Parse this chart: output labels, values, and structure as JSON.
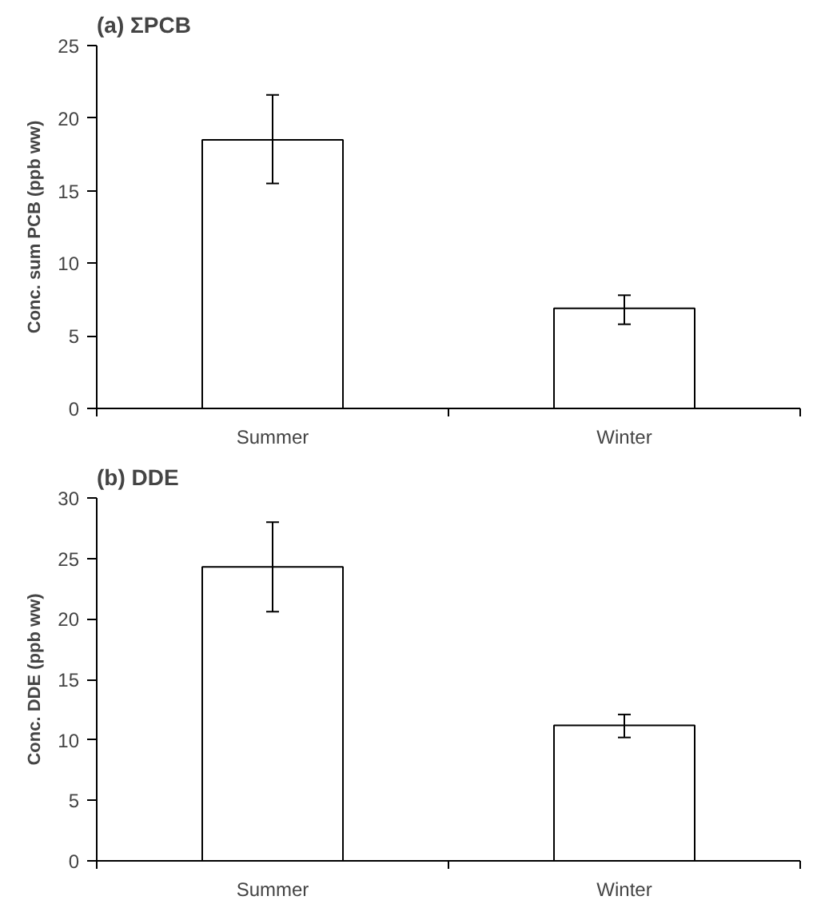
{
  "chart_data": [
    {
      "type": "bar",
      "title": "(a) ΣPCB",
      "ylabel": "Conc. sum PCB (ppb ww)",
      "categories": [
        "Summer",
        "Winter"
      ],
      "values": [
        18.5,
        6.9
      ],
      "errors": [
        [
          15.5,
          21.6
        ],
        [
          5.8,
          7.8
        ]
      ],
      "color": "#ffffff",
      "ylim": [
        0,
        25
      ],
      "yticks": [
        0,
        5,
        10,
        15,
        20,
        25
      ]
    },
    {
      "type": "bar",
      "title": "(b) DDE",
      "ylabel": "Conc. DDE (ppb ww)",
      "categories": [
        "Summer",
        "Winter"
      ],
      "values": [
        24.3,
        11.2
      ],
      "errors": [
        [
          20.6,
          28.0
        ],
        [
          10.2,
          12.1
        ]
      ],
      "color": "#ffffff",
      "ylim": [
        0,
        30
      ],
      "yticks": [
        0,
        5,
        10,
        15,
        20,
        25,
        30
      ]
    }
  ]
}
